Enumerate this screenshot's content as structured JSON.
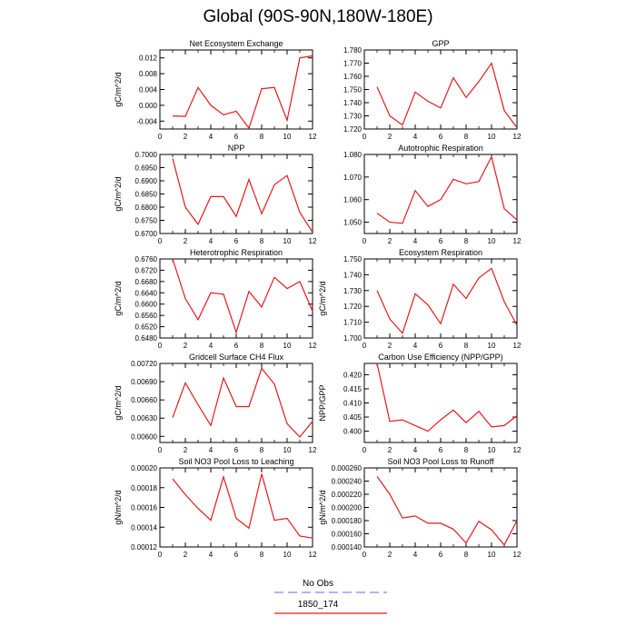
{
  "title": "Global (90S-90N,180W-180E)",
  "colors": {
    "model_line": "#e31a1c",
    "obs_line": "#9999ff"
  },
  "legend": [
    {
      "label": "No Obs",
      "style": "dashed",
      "color": "#9999ff"
    },
    {
      "label": "1850_174",
      "style": "solid",
      "color": "#e31a1c"
    }
  ],
  "chart_data": [
    {
      "type": "line",
      "title": "Net Ecosystem Exchange",
      "ylabel": "gC/m^2/d",
      "xlim": [
        0,
        12
      ],
      "xticks": [
        0,
        2,
        4,
        6,
        8,
        10,
        12
      ],
      "ylim": [
        -0.006,
        0.014
      ],
      "yticks": [
        "-0.004",
        "0.000",
        "0.004",
        "0.008",
        "0.012"
      ],
      "series": [
        {
          "x": [
            1,
            2,
            3,
            4,
            5,
            6,
            7,
            8,
            9,
            10,
            11,
            12
          ],
          "values": [
            -0.0027,
            -0.0028,
            0.0045,
            0.0,
            -0.0024,
            -0.0015,
            -0.0058,
            0.0042,
            0.0045,
            -0.0038,
            0.012,
            0.0125
          ]
        }
      ]
    },
    {
      "type": "line",
      "title": "GPP",
      "ylabel": "",
      "xlim": [
        0,
        12
      ],
      "xticks": [
        0,
        2,
        4,
        6,
        8,
        10,
        12
      ],
      "ylim": [
        1.72,
        1.78
      ],
      "yticks": [
        "1.720",
        "1.730",
        "1.740",
        "1.750",
        "1.760",
        "1.770",
        "1.780"
      ],
      "series": [
        {
          "x": [
            1,
            2,
            3,
            4,
            5,
            6,
            7,
            8,
            9,
            10,
            11,
            12
          ],
          "values": [
            1.752,
            1.73,
            1.723,
            1.748,
            1.741,
            1.736,
            1.759,
            1.744,
            1.756,
            1.77,
            1.734,
            1.721
          ]
        }
      ]
    },
    {
      "type": "line",
      "title": "NPP",
      "ylabel": "gC/m^2/d",
      "xlim": [
        0,
        12
      ],
      "xticks": [
        0,
        2,
        4,
        6,
        8,
        10,
        12
      ],
      "ylim": [
        0.67,
        0.7
      ],
      "yticks": [
        "0.6700",
        "0.6750",
        "0.6800",
        "0.6850",
        "0.6900",
        "0.6950",
        "0.7000"
      ],
      "series": [
        {
          "x": [
            1,
            2,
            3,
            4,
            5,
            6,
            7,
            8,
            9,
            10,
            11,
            12
          ],
          "values": [
            0.6985,
            0.68,
            0.6735,
            0.684,
            0.684,
            0.6765,
            0.6905,
            0.6775,
            0.6885,
            0.692,
            0.678,
            0.6705
          ]
        }
      ]
    },
    {
      "type": "line",
      "title": "Autotrophic Respiration",
      "ylabel": "",
      "xlim": [
        0,
        12
      ],
      "xticks": [
        0,
        2,
        4,
        6,
        8,
        10,
        12
      ],
      "ylim": [
        1.045,
        1.08
      ],
      "yticks": [
        "1.050",
        "1.060",
        "1.070",
        "1.080"
      ],
      "series": [
        {
          "x": [
            1,
            2,
            3,
            4,
            5,
            6,
            7,
            8,
            9,
            10,
            11,
            12
          ],
          "values": [
            1.054,
            1.05,
            1.0495,
            1.064,
            1.057,
            1.06,
            1.069,
            1.067,
            1.068,
            1.079,
            1.056,
            1.051
          ]
        }
      ]
    },
    {
      "type": "line",
      "title": "Heterotrophic Respiration",
      "ylabel": "gC/m^2/d",
      "xlim": [
        0,
        12
      ],
      "xticks": [
        0,
        2,
        4,
        6,
        8,
        10,
        12
      ],
      "ylim": [
        0.648,
        0.676
      ],
      "yticks": [
        "0.6480",
        "0.6520",
        "0.6560",
        "0.6600",
        "0.6640",
        "0.6680",
        "0.6720",
        "0.6760"
      ],
      "series": [
        {
          "x": [
            1,
            2,
            3,
            4,
            5,
            6,
            7,
            8,
            9,
            10,
            11,
            12
          ],
          "values": [
            0.676,
            0.662,
            0.6545,
            0.664,
            0.6635,
            0.65,
            0.6645,
            0.659,
            0.6695,
            0.6655,
            0.668,
            0.6575
          ]
        }
      ]
    },
    {
      "type": "line",
      "title": "Ecosystem Respiration",
      "ylabel": "gC/m^2/d",
      "xlim": [
        0,
        12
      ],
      "xticks": [
        0,
        2,
        4,
        6,
        8,
        10,
        12
      ],
      "ylim": [
        1.7,
        1.75
      ],
      "yticks": [
        "1.700",
        "1.710",
        "1.720",
        "1.730",
        "1.740",
        "1.750"
      ],
      "series": [
        {
          "x": [
            1,
            2,
            3,
            4,
            5,
            6,
            7,
            8,
            9,
            10,
            11,
            12
          ],
          "values": [
            1.73,
            1.712,
            1.703,
            1.728,
            1.721,
            1.709,
            1.734,
            1.725,
            1.738,
            1.744,
            1.723,
            1.708
          ]
        }
      ]
    },
    {
      "type": "line",
      "title": "Gridcell Surface CH4 Flux",
      "ylabel": "gC/m^2/d",
      "xlim": [
        0,
        12
      ],
      "xticks": [
        0,
        2,
        4,
        6,
        8,
        10,
        12
      ],
      "ylim": [
        0.0059,
        0.0072
      ],
      "yticks": [
        "0.00600",
        "0.00630",
        "0.00660",
        "0.00690",
        "0.00720"
      ],
      "series": [
        {
          "x": [
            1,
            2,
            3,
            4,
            5,
            6,
            7,
            8,
            9,
            10,
            11,
            12
          ],
          "values": [
            0.00631,
            0.00688,
            0.00652,
            0.00618,
            0.00696,
            0.00649,
            0.00649,
            0.00712,
            0.00686,
            0.00621,
            0.00599,
            0.00625
          ]
        }
      ]
    },
    {
      "type": "line",
      "title": "Carbon Use Efficiency (NPP/GPP)",
      "ylabel": "NPP/GPP",
      "xlim": [
        0,
        12
      ],
      "xticks": [
        0,
        2,
        4,
        6,
        8,
        10,
        12
      ],
      "ylim": [
        0.396,
        0.424
      ],
      "yticks": [
        "0.400",
        "0.405",
        "0.410",
        "0.415",
        "0.420"
      ],
      "series": [
        {
          "x": [
            1,
            2,
            3,
            4,
            5,
            6,
            7,
            8,
            9,
            10,
            11,
            12
          ],
          "values": [
            0.424,
            0.4035,
            0.404,
            0.402,
            0.4,
            0.404,
            0.4075,
            0.403,
            0.407,
            0.4015,
            0.402,
            0.4055
          ]
        }
      ]
    },
    {
      "type": "line",
      "title": "Soil NO3 Pool Loss to Leaching",
      "ylabel": "gN/m^2/d",
      "xlim": [
        0,
        12
      ],
      "xticks": [
        0,
        2,
        4,
        6,
        8,
        10,
        12
      ],
      "ylim": [
        0.00012,
        0.0002
      ],
      "yticks": [
        "0.00012",
        "0.00014",
        "0.00016",
        "0.00018",
        "0.00020"
      ],
      "series": [
        {
          "x": [
            1,
            2,
            3,
            4,
            5,
            6,
            7,
            8,
            9,
            10,
            11,
            12
          ],
          "values": [
            0.000189,
            0.000173,
            0.000159,
            0.000147,
            0.000191,
            0.000149,
            0.000139,
            0.000194,
            0.000147,
            0.000149,
            0.000131,
            0.000129
          ]
        }
      ]
    },
    {
      "type": "line",
      "title": "Soil NO3 Pool Loss to Runoff",
      "ylabel": "gN/m^2/d",
      "xlim": [
        0,
        12
      ],
      "xticks": [
        0,
        2,
        4,
        6,
        8,
        10,
        12
      ],
      "ylim": [
        0.00014,
        0.00026
      ],
      "yticks": [
        "0.000140",
        "0.000160",
        "0.000180",
        "0.000200",
        "0.000220",
        "0.000240",
        "0.000260"
      ],
      "series": [
        {
          "x": [
            1,
            2,
            3,
            4,
            5,
            6,
            7,
            8,
            9,
            10,
            11,
            12
          ],
          "values": [
            0.000247,
            0.00022,
            0.000184,
            0.000187,
            0.000176,
            0.000176,
            0.000167,
            0.000146,
            0.000179,
            0.000166,
            0.000143,
            0.00018
          ]
        }
      ]
    }
  ]
}
